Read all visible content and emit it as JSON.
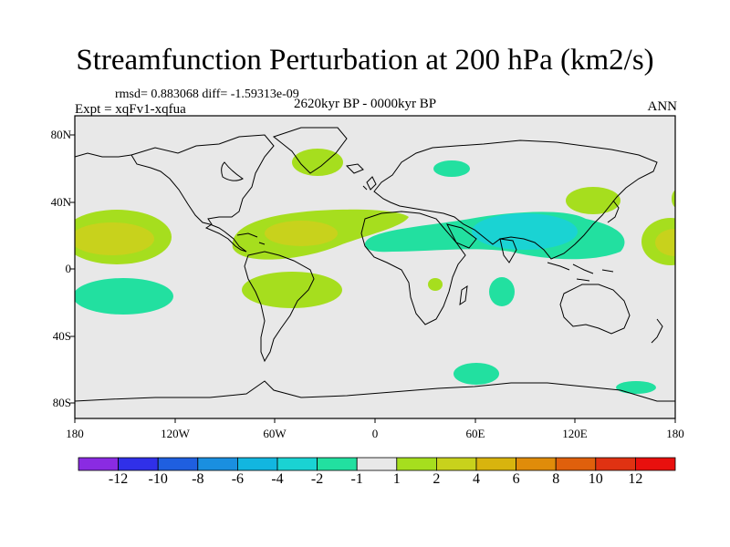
{
  "title": "Streamfunction Perturbation at 200 hPa (km2/s)",
  "stats": "rmsd= 0.883068 diff= -1.59313e-09",
  "experiment": "Expt = xqFv1-xqfua",
  "period": "2620kyr BP - 0000kyr BP",
  "season": "ANN",
  "lat_labels": [
    "80N",
    "40N",
    "0",
    "40S",
    "80S"
  ],
  "lon_labels": [
    "180",
    "120W",
    "60W",
    "0",
    "60E",
    "120E",
    "180"
  ],
  "colorbar": {
    "labels": [
      "-12",
      "-10",
      "-8",
      "-6",
      "-4",
      "-2",
      "-1",
      "1",
      "2",
      "4",
      "6",
      "8",
      "10",
      "12"
    ],
    "colors": [
      "#8a2be2",
      "#3030e8",
      "#1f5fe0",
      "#1a8fe0",
      "#12b6e0",
      "#1ad3d3",
      "#22e0a0",
      "#e8e8e8",
      "#a6de1e",
      "#c8d21c",
      "#d8b40e",
      "#e08c0a",
      "#e0600c",
      "#e03212",
      "#e8100e"
    ]
  },
  "colors": {
    "land_line": "#000000",
    "background": "#e8e8e8"
  }
}
